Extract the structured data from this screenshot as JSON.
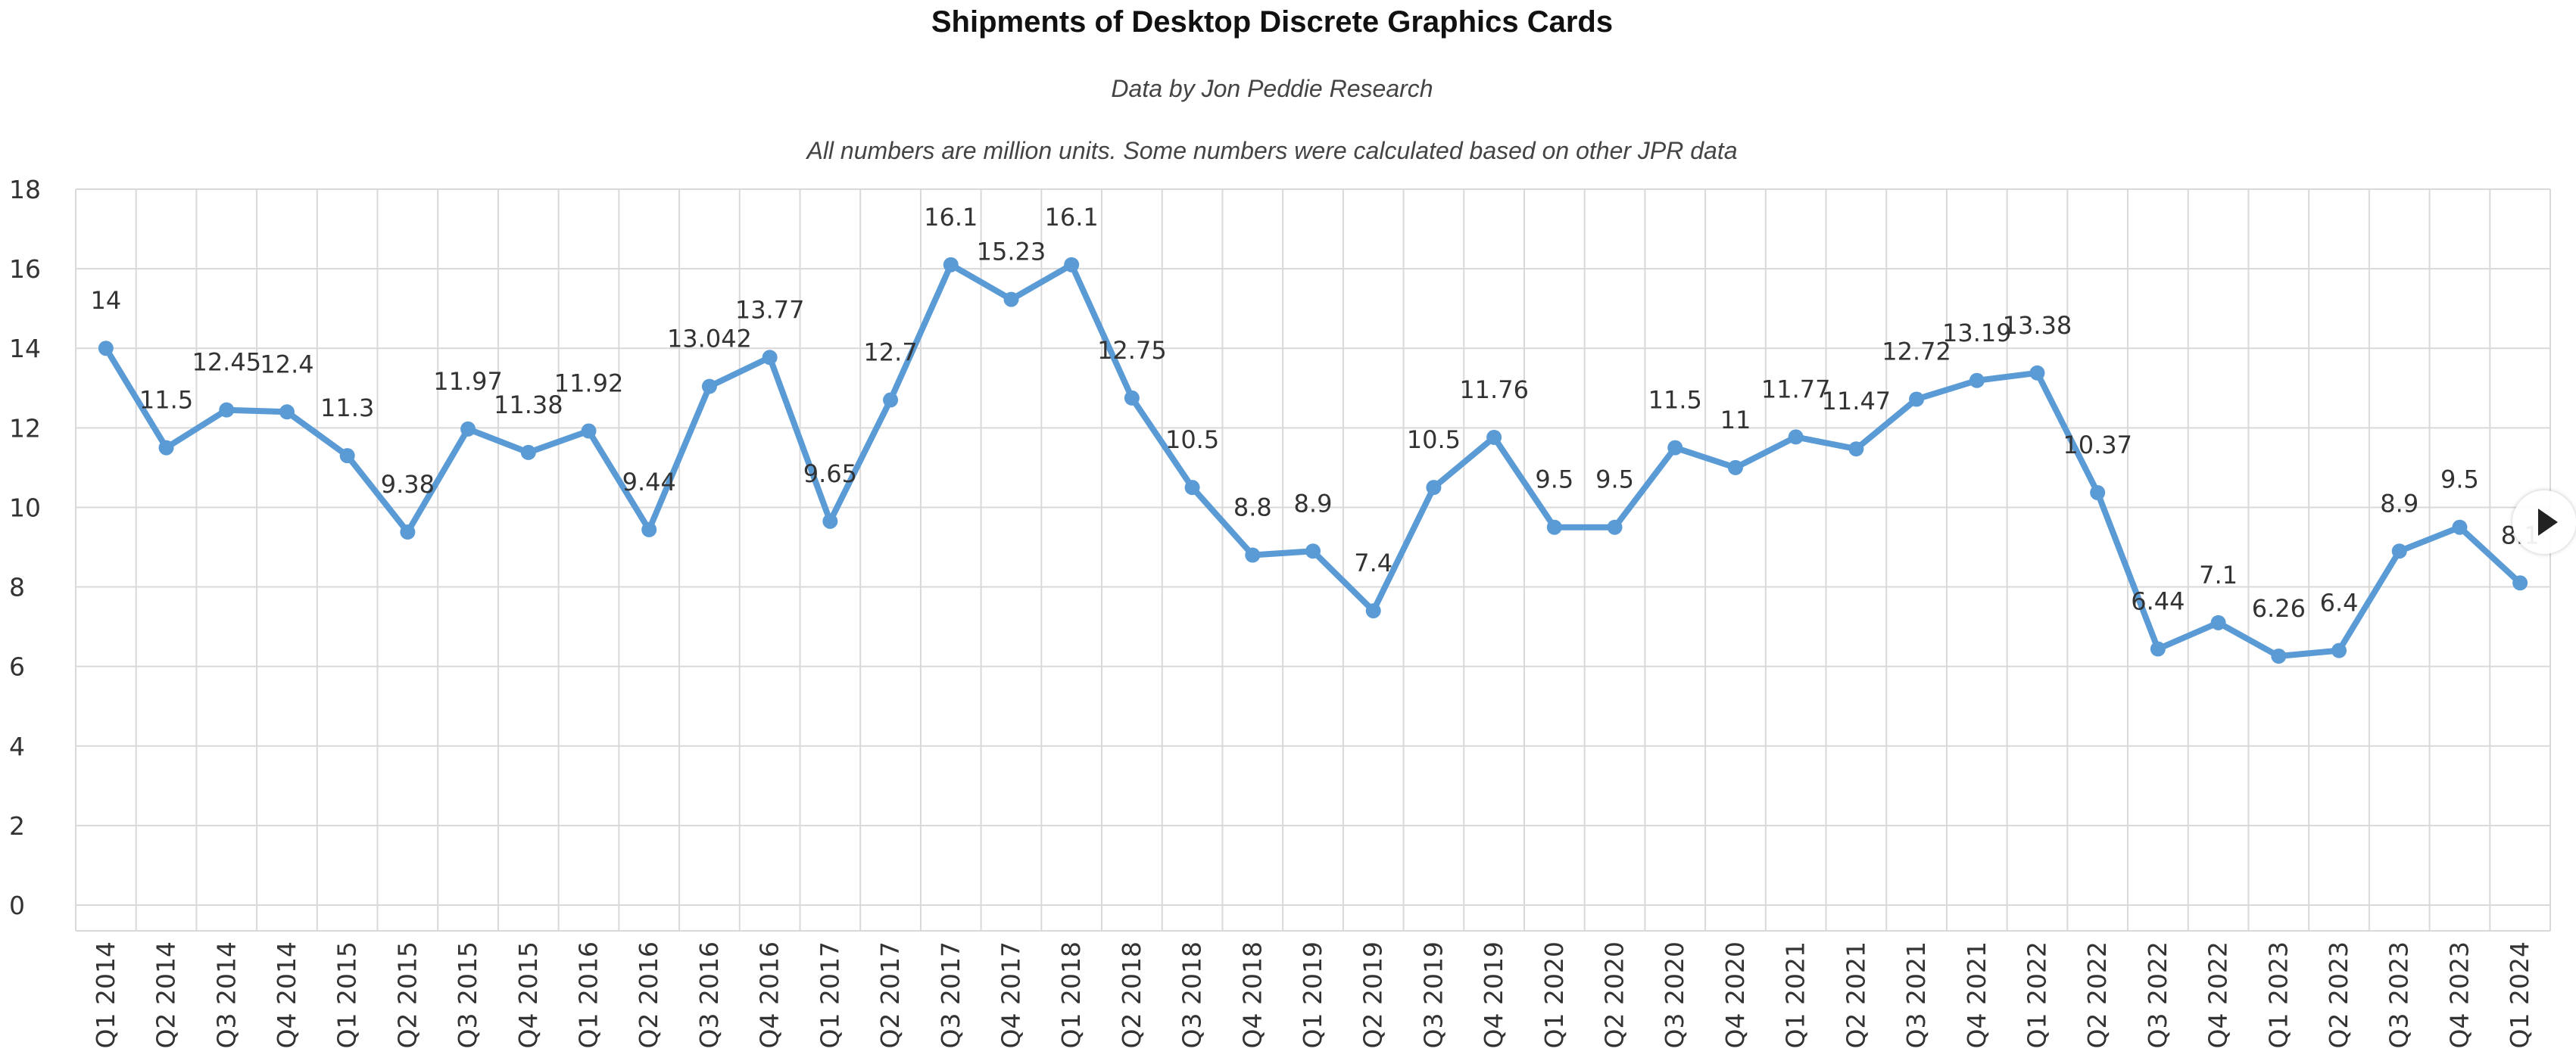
{
  "chart_data": {
    "type": "line",
    "title": "Shipments of Desktop Discrete Graphics Cards",
    "subtitle": "Data by Jon Peddie Research",
    "note": "All numbers are million units. Some numbers were calculated based on other JPR data",
    "xlabel": "",
    "ylabel": "",
    "ylim": [
      0,
      18
    ],
    "yticks": [
      0,
      2,
      4,
      6,
      8,
      10,
      12,
      14,
      16,
      18
    ],
    "grid": true,
    "legend": "none",
    "categories": [
      "Q1 2014",
      "Q2 2014",
      "Q3 2014",
      "Q4 2014",
      "Q1 2015",
      "Q2 2015",
      "Q3 2015",
      "Q4 2015",
      "Q1 2016",
      "Q2 2016",
      "Q3 2016",
      "Q4 2016",
      "Q1 2017",
      "Q2 2017",
      "Q3 2017",
      "Q4 2017",
      "Q1 2018",
      "Q2 2018",
      "Q3 2018",
      "Q4 2018",
      "Q1 2019",
      "Q2 2019",
      "Q3 2019",
      "Q4 2019",
      "Q1 2020",
      "Q2 2020",
      "Q3 2020",
      "Q4 2020",
      "Q1 2021",
      "Q2 2021",
      "Q3 2021",
      "Q4 2021",
      "Q1 2022",
      "Q2 2022",
      "Q3 2022",
      "Q4 2022",
      "Q1 2023",
      "Q2 2023",
      "Q3 2023",
      "Q4 2023",
      "Q1 2024"
    ],
    "series": [
      {
        "color": "#5b9bd5",
        "values": [
          14,
          11.5,
          12.45,
          12.4,
          11.3,
          9.38,
          11.97,
          11.38,
          11.92,
          9.44,
          13.042,
          13.77,
          9.65,
          12.7,
          16.1,
          15.23,
          16.1,
          12.75,
          10.5,
          8.8,
          8.9,
          7.4,
          10.5,
          11.76,
          9.5,
          9.5,
          11.5,
          11,
          11.77,
          11.47,
          12.72,
          13.19,
          13.38,
          10.37,
          6.44,
          7.1,
          6.26,
          6.4,
          8.9,
          9.5,
          8.1
        ],
        "labels": [
          "14",
          "11.5",
          "12.45",
          "12.4",
          "11.3",
          "9.38",
          "11.97",
          "11.38",
          "11.92",
          "9.44",
          "13.042",
          "13.77",
          "9.65",
          "12.7",
          "16.1",
          "15.23",
          "16.1",
          "12.75",
          "10.5",
          "8.8",
          "8.9",
          "7.4",
          "10.5",
          "11.76",
          "9.5",
          "9.5",
          "11.5",
          "11",
          "11.77",
          "11.47",
          "12.72",
          "13.19",
          "13.38",
          "10.37",
          "6.44",
          "7.1",
          "6.26",
          "6.4",
          "8.9",
          "9.5",
          "8.1"
        ]
      }
    ]
  },
  "controls": {
    "next_icon": "play-triangle-icon"
  }
}
